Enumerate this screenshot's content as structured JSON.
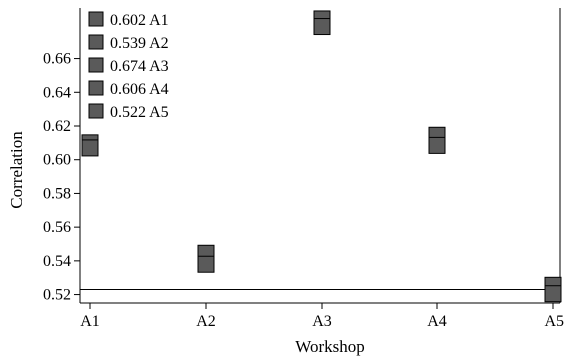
{
  "chart_data": {
    "type": "scatter",
    "xlabel": "Workshop",
    "ylabel": "Correlation",
    "categories": [
      "A1",
      "A2",
      "A3",
      "A4",
      "A5"
    ],
    "series": [
      {
        "name": "A1",
        "values": [
          0.61,
          0.607
        ]
      },
      {
        "name": "A2",
        "values": [
          0.5445,
          0.538
        ]
      },
      {
        "name": "A3",
        "values": [
          0.6835,
          0.679
        ]
      },
      {
        "name": "A4",
        "values": [
          0.6145,
          0.6085
        ]
      },
      {
        "name": "A5",
        "values": [
          0.5255,
          0.5205
        ]
      }
    ],
    "y_ticks": [
      "0.52",
      "0.54",
      "0.56",
      "0.58",
      "0.60",
      "0.62",
      "0.64",
      "0.66"
    ],
    "y_tick_values": [
      0.52,
      0.54,
      0.56,
      0.58,
      0.6,
      0.62,
      0.64,
      0.66
    ],
    "ylim": [
      0.515,
      0.69
    ],
    "reference_line": 0.523,
    "legend": {
      "placement": "top-left",
      "entries": [
        {
          "value": "0.602",
          "label": "A1"
        },
        {
          "value": "0.539",
          "label": "A2"
        },
        {
          "value": "0.674",
          "label": "A3"
        },
        {
          "value": "0.606",
          "label": "A4"
        },
        {
          "value": "0.522",
          "label": "A5"
        }
      ]
    },
    "grid": false,
    "colors": {
      "marker_fill": "#5a5a5a",
      "marker_stroke": "#000000",
      "axis": "#000000"
    }
  }
}
